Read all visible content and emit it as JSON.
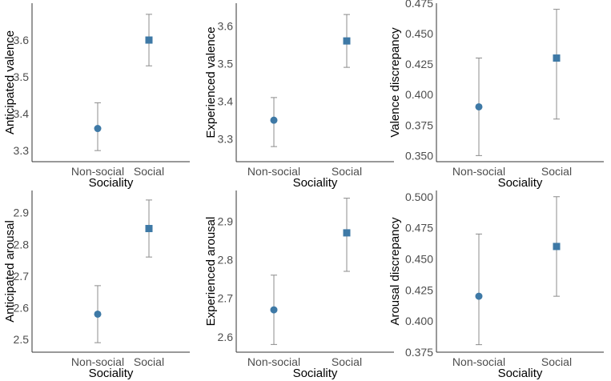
{
  "colors": {
    "marker": "#3e79a6",
    "errorbar": "#8c8c8c",
    "axis": "#333333",
    "tick_text": "#4d4d4d"
  },
  "chart_data": [
    {
      "type": "errorbar",
      "xlabel": "Sociality",
      "ylabel": "Anticipated valence",
      "categories": [
        "Non-social",
        "Social"
      ],
      "markers": [
        "circle",
        "square"
      ],
      "values": [
        3.36,
        3.6
      ],
      "lower": [
        3.3,
        3.53
      ],
      "upper": [
        3.43,
        3.67
      ],
      "ylim": [
        3.27,
        3.7
      ],
      "yticks": [
        3.3,
        3.4,
        3.5,
        3.6
      ],
      "ytick_labels": [
        "3.3",
        "3.4",
        "3.5",
        "3.6"
      ]
    },
    {
      "type": "errorbar",
      "xlabel": "Sociality",
      "ylabel": "Experienced valence",
      "categories": [
        "Non-social",
        "Social"
      ],
      "markers": [
        "circle",
        "square"
      ],
      "values": [
        3.35,
        3.56
      ],
      "lower": [
        3.28,
        3.49
      ],
      "upper": [
        3.41,
        3.63
      ],
      "ylim": [
        3.24,
        3.66
      ],
      "yticks": [
        3.3,
        3.4,
        3.5,
        3.6
      ],
      "ytick_labels": [
        "3.3",
        "3.4",
        "3.5",
        "3.6"
      ]
    },
    {
      "type": "errorbar",
      "xlabel": "Sociality",
      "ylabel": "Valence discrepancy",
      "categories": [
        "Non-social",
        "Social"
      ],
      "markers": [
        "circle",
        "square"
      ],
      "values": [
        0.39,
        0.43
      ],
      "lower": [
        0.35,
        0.38
      ],
      "upper": [
        0.43,
        0.47
      ],
      "ylim": [
        0.345,
        0.475
      ],
      "yticks": [
        0.35,
        0.375,
        0.4,
        0.425,
        0.45,
        0.475
      ],
      "ytick_labels": [
        "0.350",
        "0.375",
        "0.400",
        "0.425",
        "0.450",
        "0.475"
      ]
    },
    {
      "type": "errorbar",
      "xlabel": "Sociality",
      "ylabel": "Anticipated arousal",
      "categories": [
        "Non-social",
        "Social"
      ],
      "markers": [
        "circle",
        "square"
      ],
      "values": [
        2.58,
        2.85
      ],
      "lower": [
        2.49,
        2.76
      ],
      "upper": [
        2.67,
        2.94
      ],
      "ylim": [
        2.46,
        2.97
      ],
      "yticks": [
        2.5,
        2.6,
        2.7,
        2.8,
        2.9
      ],
      "ytick_labels": [
        "2.5",
        "2.6",
        "2.7",
        "2.8",
        "2.9"
      ]
    },
    {
      "type": "errorbar",
      "xlabel": "Sociality",
      "ylabel": "Experienced arousal",
      "categories": [
        "Non-social",
        "Social"
      ],
      "markers": [
        "circle",
        "square"
      ],
      "values": [
        2.67,
        2.87
      ],
      "lower": [
        2.58,
        2.77
      ],
      "upper": [
        2.76,
        2.96
      ],
      "ylim": [
        2.56,
        2.98
      ],
      "yticks": [
        2.6,
        2.7,
        2.8,
        2.9
      ],
      "ytick_labels": [
        "2.6",
        "2.7",
        "2.8",
        "2.9"
      ]
    },
    {
      "type": "errorbar",
      "xlabel": "Sociality",
      "ylabel": "Arousal discrepancy",
      "categories": [
        "Non-social",
        "Social"
      ],
      "markers": [
        "circle",
        "square"
      ],
      "values": [
        0.42,
        0.46
      ],
      "lower": [
        0.381,
        0.42
      ],
      "upper": [
        0.47,
        0.5
      ],
      "ylim": [
        0.375,
        0.505
      ],
      "yticks": [
        0.375,
        0.4,
        0.425,
        0.45,
        0.475,
        0.5
      ],
      "ytick_labels": [
        "0.375",
        "0.400",
        "0.425",
        "0.450",
        "0.475",
        "0.500"
      ]
    }
  ]
}
